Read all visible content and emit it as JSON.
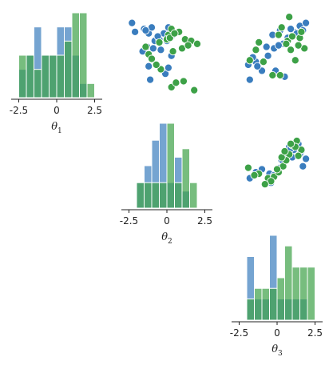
{
  "chart_data": {
    "type": "pairplot",
    "variables": [
      "θ",
      "θ",
      "θ"
    ],
    "variable_subscripts": [
      "1",
      "2",
      "3"
    ],
    "series_colors": [
      "#3a7dbe",
      "#3da147"
    ],
    "hist_alpha": 0.7,
    "axis_range": [
      -3,
      3
    ],
    "ticks": [
      -2.5,
      0,
      2.5
    ],
    "tick_labels": [
      "-2.5",
      "0",
      "2.5"
    ],
    "grid": false,
    "legend": "none",
    "diagonal": [
      {
        "variable_index": 0,
        "bin_edges": [
          -2.5,
          -2.0,
          -1.5,
          -1.0,
          -0.5,
          0.0,
          0.5,
          1.0,
          1.5,
          2.0,
          2.5
        ],
        "series": [
          {
            "counts": [
              2,
              3,
              5,
              3,
              3,
              5,
              5,
              3,
              1,
              0
            ]
          },
          {
            "counts": [
              3,
              3,
              2,
              3,
              3,
              3,
              4,
              6,
              6,
              1
            ]
          }
        ]
      },
      {
        "variable_index": 1,
        "bin_edges": [
          -2.5,
          -2.0,
          -1.5,
          -1.0,
          -0.5,
          0.0,
          0.5,
          1.0,
          1.5,
          2.0,
          2.5
        ],
        "series": [
          {
            "counts": [
              0,
              3,
              5,
              8,
              10,
              3,
              6,
              2,
              0,
              0
            ]
          },
          {
            "counts": [
              0,
              3,
              3,
              3,
              3,
              10,
              3,
              7,
              3,
              0
            ]
          }
        ]
      },
      {
        "variable_index": 2,
        "bin_edges": [
          -2.5,
          -2.0,
          -1.5,
          -1.0,
          -0.5,
          0.0,
          0.5,
          1.0,
          1.5,
          2.0,
          2.5
        ],
        "series": [
          {
            "counts": [
              0,
              6,
              2,
              2,
              8,
              2,
              2,
              2,
              2,
              0
            ]
          },
          {
            "counts": [
              0,
              2,
              3,
              3,
              3,
              4,
              7,
              5,
              5,
              5
            ]
          }
        ]
      }
    ],
    "scatter": [
      {
        "row": 0,
        "col": 1,
        "x_var": 1,
        "y_var": 0,
        "series": [
          {
            "x": [
              -2.3,
              -2.1,
              -1.5,
              -1.2,
              -1.0,
              -0.8,
              -0.5,
              -0.2,
              0.1,
              0.4,
              -1.4,
              -0.6,
              0.0,
              -1.3,
              -1.6,
              -0.9,
              -0.4,
              0.3,
              -1.2,
              -0.1,
              0.1,
              -1.1
            ],
            "y": [
              2.0,
              1.4,
              1.6,
              1.3,
              1.7,
              0.8,
              0.9,
              1.3,
              1.7,
              1.2,
              1.5,
              1.1,
              0.8,
              0.4,
              0.1,
              0.3,
              0.2,
              -0.2,
              -0.9,
              -1.4,
              -1.0,
              -1.8
            ]
          },
          {
            "x": [
              -1.2,
              -0.4,
              0.1,
              0.3,
              0.8,
              1.2,
              1.6,
              2.0,
              -1.4,
              -0.5,
              0.0,
              0.2,
              0.5,
              1.0,
              1.4,
              0.4,
              -1.0,
              1.1,
              0.3,
              -0.7,
              1.8,
              0.6
            ],
            "y": [
              -0.1,
              -1.1,
              1.2,
              1.6,
              1.4,
              0.9,
              0.8,
              0.6,
              0.4,
              0.7,
              0.9,
              1.0,
              1.3,
              0.3,
              0.5,
              0.1,
              -0.4,
              -1.9,
              -2.3,
              -0.8,
              -2.5,
              -2.0
            ]
          }
        ]
      },
      {
        "row": 0,
        "col": 2,
        "x_var": 2,
        "y_var": 0,
        "series": [
          {
            "x": [
              -1.9,
              -1.4,
              -1.0,
              -0.6,
              -0.2,
              0.4,
              0.7,
              1.1,
              1.5,
              1.9,
              -1.8,
              -0.3,
              0.1,
              0.9,
              1.3,
              -1.6,
              -1.3,
              0.2,
              -0.7,
              0.5,
              1.7,
              -0.1
            ],
            "y": [
              -0.8,
              -0.6,
              -1.2,
              -0.2,
              0.3,
              0.6,
              1.0,
              1.4,
              1.8,
              2.0,
              -1.8,
              1.2,
              0.5,
              1.6,
              1.3,
              -0.3,
              -0.9,
              1.5,
              0.4,
              -1.6,
              1.5,
              -1.2
            ]
          },
          {
            "x": [
              -1.8,
              -1.4,
              -0.9,
              0.1,
              0.3,
              0.7,
              1.0,
              1.5,
              1.6,
              -1.2,
              0.8,
              0.6,
              1.8,
              0.9,
              1.4,
              -0.3,
              0.2,
              1.2
            ],
            "y": [
              -0.5,
              0.2,
              -0.6,
              1.2,
              1.7,
              0.8,
              1.1,
              1.0,
              1.4,
              0.7,
              2.4,
              0.6,
              0.3,
              0.2,
              0.5,
              -1.5,
              -1.5,
              -0.5
            ]
          }
        ]
      },
      {
        "row": 1,
        "col": 2,
        "x_var": 2,
        "y_var": 1,
        "series": [
          {
            "x": [
              -1.8,
              -1.4,
              -1.0,
              -0.5,
              0.0,
              0.3,
              0.6,
              1.0,
              1.3,
              1.6,
              1.9,
              0.8,
              1.1,
              1.5,
              0.4,
              -0.2,
              0.9,
              1.4,
              0.2,
              0.7,
              -0.4,
              1.7
            ],
            "y": [
              -1.0,
              -0.6,
              -0.4,
              -0.7,
              -0.4,
              0.2,
              0.7,
              0.4,
              0.9,
              0.8,
              0.3,
              1.1,
              0.9,
              0.6,
              0.1,
              -0.8,
              1.0,
              1.3,
              -0.3,
              0.6,
              -1.3,
              -0.2
            ]
          },
          {
            "x": [
              -1.9,
              -1.2,
              -0.6,
              -0.2,
              0.1,
              0.4,
              0.8,
              1.0,
              1.3,
              1.6,
              -1.5,
              -0.4,
              0.0,
              0.6,
              1.2,
              0.3,
              -0.8,
              0.5,
              0.9,
              1.4
            ],
            "y": [
              -0.3,
              -0.7,
              -1.0,
              -0.9,
              -0.6,
              -0.2,
              0.6,
              1.2,
              1.5,
              0.9,
              -0.8,
              -1.2,
              -0.4,
              0.2,
              1.1,
              0.4,
              -1.4,
              0.8,
              1.3,
              0.5
            ]
          }
        ]
      }
    ]
  }
}
